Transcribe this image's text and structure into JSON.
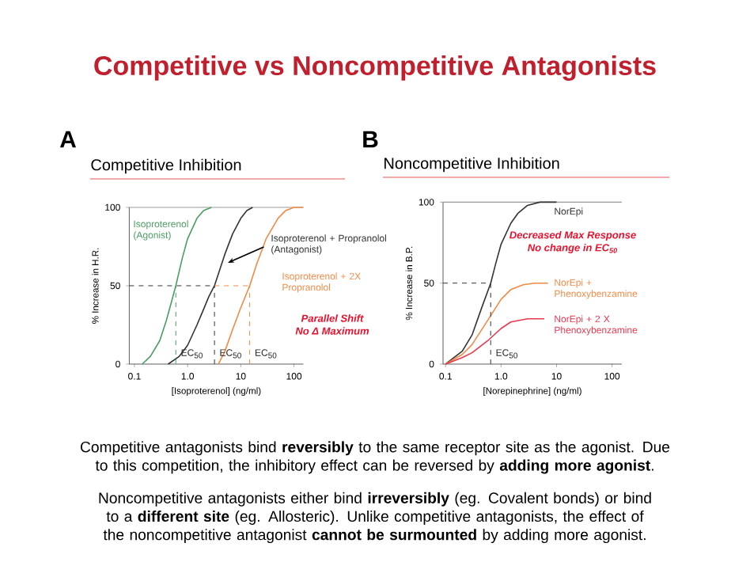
{
  "chart_data": [
    {
      "type": "other",
      "title": "Competitive vs Noncompetitive Antagonists",
      "annotations": [
        "Competitive antagonists bind **reversibly** to the same receptor site as the agonist. Due to this competition, the inhibitory effect can be reversed by **adding more agonist**.",
        "Noncompetitive antagonists either bind **irreversibly** (eg. Covalent bonds) or bind to a **different site** (eg. Allosteric). Unlike competitive antagonists, the effect of the noncompetitive antagonist **cannot be surmounted** by adding more agonist."
      ]
    },
    {
      "type": "line",
      "title": "Competitive Inhibition",
      "xlabel": "[Isoproterenol] (ng/ml)",
      "ylabel": "% Increase in H.R.",
      "log": "x",
      "xlim": [
        0.08,
        150
      ],
      "ylim": [
        0,
        100
      ],
      "xticks": [
        0.1,
        {
          "value": 1,
          "label": "1.0"
        },
        10,
        100
      ],
      "yticks": [
        0,
        50,
        100
      ],
      "series": [
        {
          "name": "Isoproterenol (Agonist)",
          "color": "#4a9e62",
          "x": [
            0.14,
            0.2,
            0.3,
            0.4,
            0.5,
            0.6,
            0.8,
            1.0,
            1.5,
            2.0,
            2.8
          ],
          "values": [
            0,
            5,
            15,
            28,
            40,
            50,
            68,
            80,
            93,
            98,
            100
          ]
        },
        {
          "name": "Isoproterenol + Propranolol (Antagonist)",
          "color": "#333333",
          "x": [
            0.43,
            0.7,
            1.0,
            1.5,
            2.0,
            2.5,
            3.2,
            4,
            5,
            7,
            10,
            13,
            16.7
          ],
          "values": [
            0,
            5,
            12,
            25,
            35,
            43,
            50,
            60,
            70,
            83,
            93,
            98,
            100
          ]
        },
        {
          "name": "Isoproterenol + 2X Propranolol",
          "color": "#f28a45",
          "x": [
            3.8,
            5,
            7,
            10,
            14.7,
            20,
            30,
            50,
            70,
            100,
            150
          ],
          "values": [
            0,
            8,
            22,
            36,
            50,
            64,
            80,
            93,
            98,
            100,
            100
          ]
        },
        {
          "color": "#333333",
          "line_style": "dashed",
          "x": [
            0.08,
            3.2
          ],
          "values": [
            50,
            50
          ]
        },
        {
          "color": "#f28a45",
          "line_style": "dashed",
          "x": [
            3.2,
            14.7
          ],
          "values": [
            50,
            50
          ]
        },
        {
          "color": "#4a9e62",
          "line_style": "dashed",
          "x": [
            0.6,
            0.6
          ],
          "values": [
            0,
            50
          ]
        },
        {
          "color": "#333333",
          "line_style": "dashed",
          "x": [
            3.2,
            3.2
          ],
          "values": [
            0,
            50
          ]
        },
        {
          "color": "#f28a45",
          "line_style": "dashed",
          "x": [
            14.7,
            14.7
          ],
          "values": [
            0,
            50
          ]
        }
      ],
      "ref_lines": [
        {
          "axis": "y",
          "value": 100,
          "color": "#999999"
        }
      ],
      "annotations": [
        "A",
        {
          "text": "EC$_{50}$",
          "x": 0.6,
          "y": 0
        },
        {
          "text": "EC$_{50}$",
          "x": 3.2,
          "y": 0
        },
        {
          "text": "EC$_{50}$",
          "x": 14.7,
          "y": 0
        },
        "Parallel Shift",
        "No Δ Maximum"
      ]
    },
    {
      "type": "line",
      "title": "Noncompetitive Inhibition",
      "xlabel": "[Norepinephrine] (ng/ml)",
      "ylabel": "% Increase in  B.P.",
      "log": "x",
      "xlim": [
        0.09,
        150
      ],
      "ylim": [
        0,
        100
      ],
      "xticks": [
        0.1,
        {
          "value": 1,
          "label": "1.0"
        },
        10,
        100
      ],
      "yticks": [
        0,
        50,
        100
      ],
      "series": [
        {
          "name": "NorEpi",
          "color": "#333333",
          "x": [
            0.1,
            0.2,
            0.3,
            0.45,
            0.65,
            0.8,
            1.0,
            1.5,
            2,
            3,
            5,
            10
          ],
          "values": [
            0,
            8,
            18,
            35,
            50,
            62,
            74,
            87,
            93,
            98,
            100,
            100
          ]
        },
        {
          "name": "NorEpi + Phenoxybenzamine",
          "color": "#f28a45",
          "x": [
            0.1,
            0.2,
            0.3,
            0.6,
            1.0,
            1.5,
            2.5,
            4,
            7
          ],
          "values": [
            0,
            6,
            12,
            28,
            40,
            46,
            49,
            50,
            50
          ]
        },
        {
          "name": "NorEpi + 2 X Phenoxybenzamine",
          "color": "#e8384f",
          "x": [
            0.1,
            0.2,
            0.3,
            0.6,
            1.0,
            1.5,
            3,
            6
          ],
          "values": [
            0,
            4,
            7,
            15,
            22,
            26,
            28,
            28
          ]
        },
        {
          "color": "#333333",
          "line_style": "dashed",
          "x": [
            0.09,
            0.65
          ],
          "values": [
            50,
            50
          ]
        },
        {
          "color": "#333333",
          "line_style": "dashed",
          "x": [
            0.65,
            0.65
          ],
          "values": [
            0,
            50
          ]
        }
      ],
      "ref_lines": [
        {
          "axis": "y",
          "value": 100,
          "color": "#999999"
        }
      ],
      "annotations": [
        "B",
        {
          "text": "EC$_{50}$",
          "x": 0.65,
          "y": 0
        },
        "Decreased Max Response",
        "No change in EC$_{50}$"
      ]
    }
  ]
}
